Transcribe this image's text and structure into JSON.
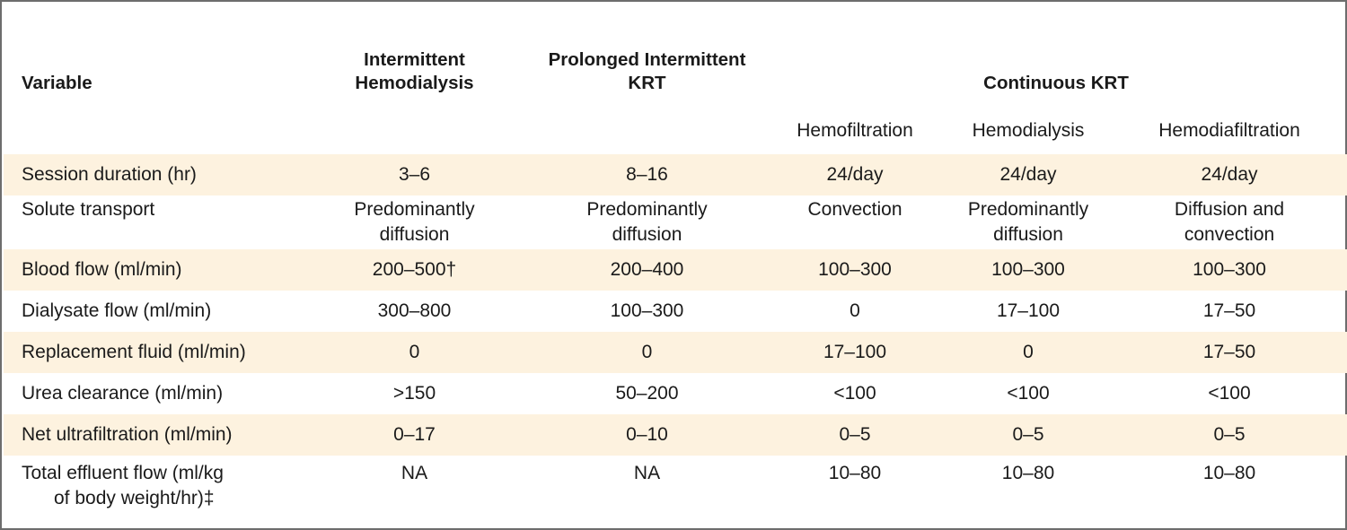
{
  "header": {
    "variable": "Variable",
    "intermittent_hd": [
      "Intermittent",
      "Hemodialysis"
    ],
    "prolonged": [
      "Prolonged Intermittent",
      "KRT"
    ],
    "continuous": "Continuous KRT",
    "sub": [
      "Hemofiltration",
      "Hemodialysis",
      "Hemodiafiltration"
    ]
  },
  "rows": [
    {
      "label": "Session duration (hr)",
      "cells": [
        [
          "3–6"
        ],
        [
          "8–16"
        ],
        [
          "24/day"
        ],
        [
          "24/day"
        ],
        [
          "24/day"
        ]
      ]
    },
    {
      "label": "Solute transport",
      "cells": [
        [
          "Predominantly",
          "diffusion"
        ],
        [
          "Predominantly",
          "diffusion"
        ],
        [
          "Convection"
        ],
        [
          "Predominantly",
          "diffusion"
        ],
        [
          "Diffusion and",
          "convection"
        ]
      ]
    },
    {
      "label": "Blood flow (ml/min)",
      "cells": [
        [
          "200–500†"
        ],
        [
          "200–400"
        ],
        [
          "100–300"
        ],
        [
          "100–300"
        ],
        [
          "100–300"
        ]
      ]
    },
    {
      "label": "Dialysate flow (ml/min)",
      "cells": [
        [
          "300–800"
        ],
        [
          "100–300"
        ],
        [
          "0"
        ],
        [
          "17–100"
        ],
        [
          "17–50"
        ]
      ]
    },
    {
      "label": "Replacement fluid (ml/min)",
      "cells": [
        [
          "0"
        ],
        [
          "0"
        ],
        [
          "17–100"
        ],
        [
          "0"
        ],
        [
          "17–50"
        ]
      ]
    },
    {
      "label": "Urea clearance (ml/min)",
      "cells": [
        [
          ">150"
        ],
        [
          "50–200"
        ],
        [
          "<100"
        ],
        [
          "<100"
        ],
        [
          "<100"
        ]
      ]
    },
    {
      "label": "Net ultrafiltration (ml/min)",
      "cells": [
        [
          "0–17"
        ],
        [
          "0–10"
        ],
        [
          "0–5"
        ],
        [
          "0–5"
        ],
        [
          "0–5"
        ]
      ]
    },
    {
      "label": [
        "Total effluent flow (ml/kg",
        "of body weight/hr)‡"
      ],
      "cells": [
        [
          "NA"
        ],
        [
          "NA"
        ],
        [
          "10–80"
        ],
        [
          "10–80"
        ],
        [
          "10–80"
        ]
      ]
    }
  ]
}
